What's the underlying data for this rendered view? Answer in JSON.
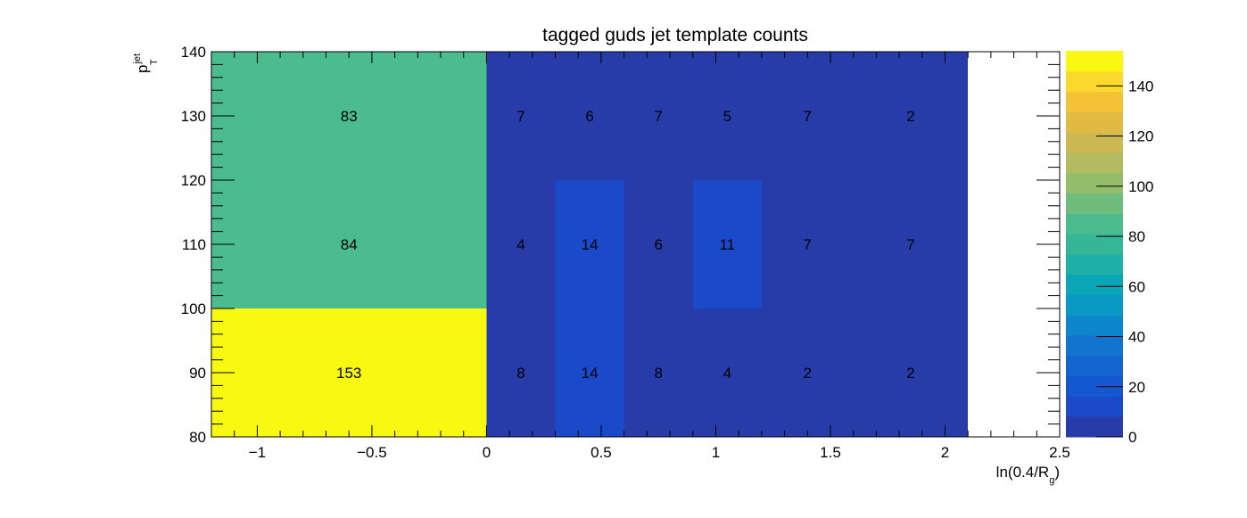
{
  "chart_data": {
    "type": "heatmap",
    "title": "tagged guds jet template counts",
    "xlabel": "ln(0.4/R",
    "xlabel_sub": "g",
    "xlabel_close": ")",
    "ylabel": "p",
    "ylabel_sup": "jet",
    "ylabel_sub": "T",
    "xlim": [
      -1.2,
      2.5
    ],
    "ylim": [
      80,
      140
    ],
    "x_ticks": [
      {
        "value": -1,
        "label": "−1"
      },
      {
        "value": -0.5,
        "label": "−0.5"
      },
      {
        "value": 0,
        "label": "0"
      },
      {
        "value": 0.5,
        "label": "0.5"
      },
      {
        "value": 1,
        "label": "1"
      },
      {
        "value": 1.5,
        "label": "1.5"
      },
      {
        "value": 2,
        "label": "2"
      },
      {
        "value": 2.5,
        "label": "2.5"
      }
    ],
    "y_ticks": [
      {
        "value": 80,
        "label": "80"
      },
      {
        "value": 90,
        "label": "90"
      },
      {
        "value": 100,
        "label": "100"
      },
      {
        "value": 110,
        "label": "110"
      },
      {
        "value": 120,
        "label": "120"
      },
      {
        "value": 130,
        "label": "130"
      },
      {
        "value": 140,
        "label": "140"
      }
    ],
    "x_edges": [
      -1.2,
      0,
      0.3,
      0.6,
      0.9,
      1.2,
      1.6,
      2.1
    ],
    "y_edges": [
      80,
      100,
      120,
      140
    ],
    "values": [
      [
        153,
        8,
        14,
        8,
        4,
        2,
        2
      ],
      [
        84,
        4,
        14,
        6,
        11,
        7,
        7
      ],
      [
        83,
        7,
        6,
        7,
        5,
        7,
        2
      ]
    ],
    "zlim": [
      0,
      154
    ],
    "colorbar_ticks": [
      {
        "value": 0,
        "label": "0"
      },
      {
        "value": 20,
        "label": "20"
      },
      {
        "value": 40,
        "label": "40"
      },
      {
        "value": 60,
        "label": "60"
      },
      {
        "value": 80,
        "label": "80"
      },
      {
        "value": 100,
        "label": "100"
      },
      {
        "value": 120,
        "label": "120"
      },
      {
        "value": 140,
        "label": "140"
      }
    ],
    "colorbar_colors": [
      "#283ca9",
      "#1a49c9",
      "#1557d0",
      "#1464d2",
      "#1374d0",
      "#0d86cd",
      "#0899c4",
      "#09a6b7",
      "#1fb0a7",
      "#35b697",
      "#4bbc8d",
      "#6ebd7c",
      "#93bc6b",
      "#b3bb60",
      "#cdb954",
      "#e0ba42",
      "#f3c236",
      "#fbd92c",
      "#f8f810"
    ],
    "grid": false
  }
}
